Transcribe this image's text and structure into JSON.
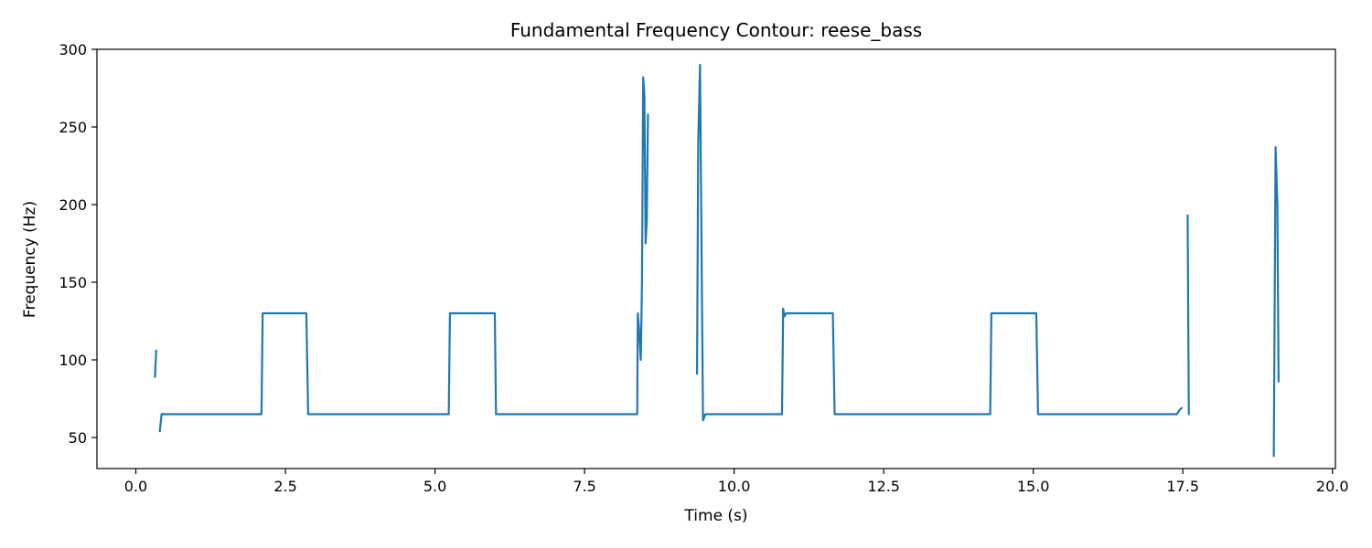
{
  "chart_data": {
    "type": "line",
    "title": "Fundamental Frequency Contour: reese_bass",
    "xlabel": "Time (s)",
    "ylabel": "Frequency (Hz)",
    "xlim": [
      -0.65,
      20.05
    ],
    "ylim": [
      30,
      300
    ],
    "xticks": [
      0.0,
      2.5,
      5.0,
      7.5,
      10.0,
      12.5,
      15.0,
      17.5,
      20.0
    ],
    "xtick_labels": [
      "0.0",
      "2.5",
      "5.0",
      "7.5",
      "10.0",
      "12.5",
      "15.0",
      "17.5",
      "20.0"
    ],
    "yticks": [
      50,
      100,
      150,
      200,
      250,
      300
    ],
    "ytick_labels": [
      "50",
      "100",
      "150",
      "200",
      "250",
      "300"
    ],
    "grid": false,
    "series_color": "#1f77b4",
    "segments": [
      [
        [
          0.32,
          89
        ],
        [
          0.34,
          106
        ]
      ],
      [
        [
          0.4,
          54
        ],
        [
          0.43,
          65
        ],
        [
          2.1,
          65
        ],
        [
          2.12,
          130
        ],
        [
          2.85,
          130
        ],
        [
          2.88,
          65
        ],
        [
          5.23,
          65
        ],
        [
          5.25,
          130
        ],
        [
          6.0,
          130
        ],
        [
          6.02,
          65
        ],
        [
          8.38,
          65
        ],
        [
          8.39,
          130
        ],
        [
          8.41,
          120
        ],
        [
          8.44,
          100
        ],
        [
          8.46,
          150
        ],
        [
          8.48,
          282
        ],
        [
          8.5,
          270
        ],
        [
          8.52,
          175
        ],
        [
          8.54,
          190
        ],
        [
          8.56,
          258
        ]
      ],
      [
        [
          9.38,
          91
        ],
        [
          9.4,
          240
        ],
        [
          9.43,
          290
        ],
        [
          9.46,
          150
        ],
        [
          9.48,
          61
        ],
        [
          9.52,
          65
        ],
        [
          10.8,
          65
        ],
        [
          10.82,
          133
        ],
        [
          10.84,
          128
        ],
        [
          10.87,
          130
        ],
        [
          11.65,
          130
        ],
        [
          11.68,
          65
        ],
        [
          14.28,
          65
        ],
        [
          14.3,
          130
        ],
        [
          15.05,
          130
        ],
        [
          15.08,
          65
        ],
        [
          17.4,
          65
        ],
        [
          17.45,
          68
        ],
        [
          17.48,
          69
        ]
      ],
      [
        [
          17.58,
          193
        ],
        [
          17.6,
          65
        ]
      ],
      [
        [
          19.02,
          38
        ],
        [
          19.05,
          237
        ],
        [
          19.08,
          200
        ],
        [
          19.1,
          86
        ]
      ]
    ]
  }
}
